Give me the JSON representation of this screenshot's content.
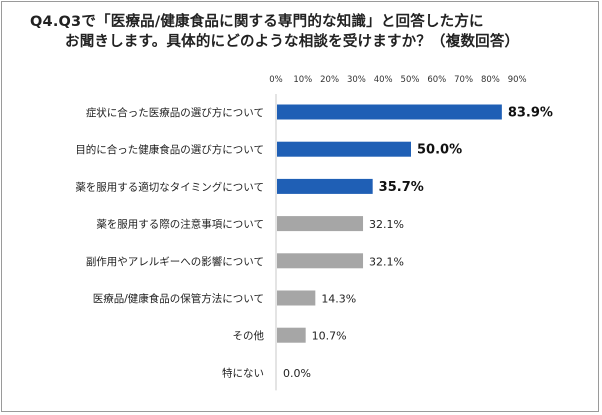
{
  "title": {
    "line1": "Q4.Q3で「医療品/健康食品に関する専門的な知識」と回答した方に",
    "line2": "お聞きします。具体的にどのような相談を受けますか？（複数回答）"
  },
  "colors": {
    "highlight": "#1f5fb5",
    "normal": "#a6a6a6",
    "axis": "#c8c8c8",
    "text": "#222222"
  },
  "chart_data": {
    "type": "bar",
    "orientation": "horizontal",
    "title": "Q4.Q3で「医療品/健康食品に関する専門的な知識」と回答した方にお聞きします。具体的にどのような相談を受けますか？（複数回答）",
    "categories": [
      "症状に合った医療品の選び方について",
      "目的に合った健康食品の選び方について",
      "薬を服用する適切なタイミングについて",
      "薬を服用する際の注意事項について",
      "副作用やアレルギーへの影響について",
      "医療品/健康食品の保管方法について",
      "その他",
      "特にない"
    ],
    "values": [
      83.9,
      50.0,
      35.7,
      32.1,
      32.1,
      14.3,
      10.7,
      0.0
    ],
    "value_labels": [
      "83.9%",
      "50.0%",
      "35.7%",
      "32.1%",
      "32.1%",
      "14.3%",
      "10.7%",
      "0.0%"
    ],
    "highlighted": [
      true,
      true,
      true,
      false,
      false,
      false,
      false,
      false
    ],
    "xlim": [
      0,
      90
    ],
    "x_ticks": [
      "0%",
      "10%",
      "20%",
      "30%",
      "40%",
      "50%",
      "60%",
      "70%",
      "80%",
      "90%"
    ],
    "tick_position": "top",
    "grid": false,
    "legend": "none"
  }
}
